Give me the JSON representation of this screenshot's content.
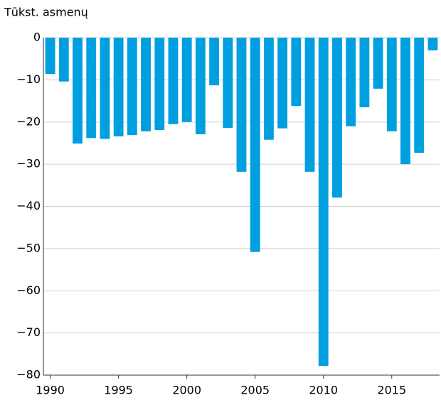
{
  "chart_data": {
    "type": "bar",
    "title": "Tūkst. asmenų",
    "x": [
      1990,
      1991,
      1992,
      1993,
      1994,
      1995,
      1996,
      1997,
      1998,
      1999,
      2000,
      2001,
      2002,
      2003,
      2004,
      2005,
      2006,
      2007,
      2008,
      2009,
      2010,
      2011,
      2012,
      2013,
      2014,
      2015,
      2016,
      2017,
      2018
    ],
    "values": [
      -8.6,
      -10.4,
      -25.1,
      -23.8,
      -24.0,
      -23.4,
      -23.1,
      -22.2,
      -21.9,
      -20.5,
      -20.0,
      -22.9,
      -11.3,
      -21.4,
      -31.8,
      -50.8,
      -24.2,
      -21.5,
      -16.2,
      -31.8,
      -77.8,
      -37.9,
      -21.0,
      -16.5,
      -12.1,
      -22.2,
      -30.0,
      -27.3,
      -3.0
    ],
    "color": "#009fe0",
    "xlim": [
      1989.5,
      2018.5
    ],
    "xticks": [
      1990,
      1995,
      2000,
      2005,
      2010,
      2015
    ],
    "ylim": [
      -80,
      0
    ],
    "yticks": [
      0,
      {
        "value": -10,
        "label": "−10"
      },
      {
        "value": -20,
        "label": "−20"
      },
      {
        "value": -30,
        "label": "−30"
      },
      {
        "value": -40,
        "label": "−40"
      },
      {
        "value": -50,
        "label": "−50"
      },
      {
        "value": -60,
        "label": "−60"
      },
      {
        "value": -70,
        "label": "−70"
      },
      {
        "value": -80,
        "label": "−80"
      }
    ],
    "grid": true
  }
}
